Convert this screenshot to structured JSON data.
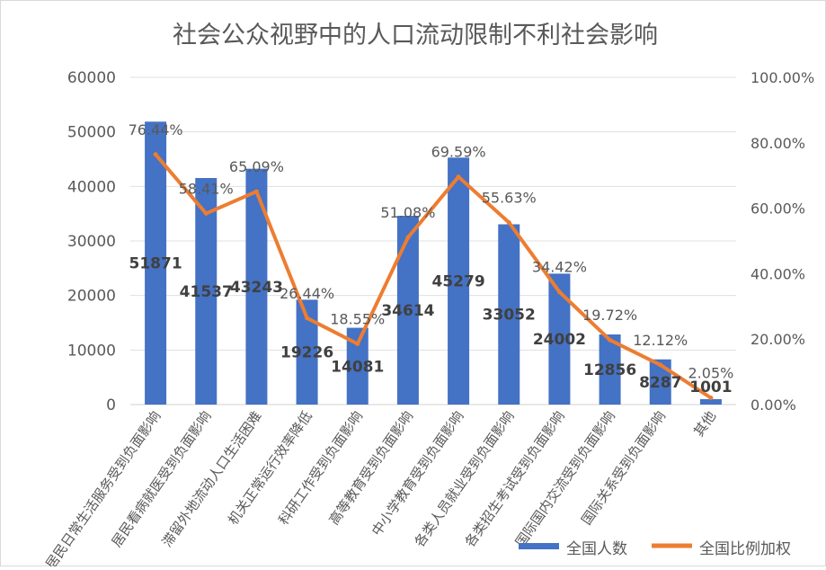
{
  "chart_data": {
    "type": "bar",
    "title": "社会公众视野中的人口流动限制不利社会影响",
    "categories": [
      "居民日常生活服务受到负面影响",
      "居民看病就医受到负面影响",
      "滞留外地流动人口生活困难",
      "机关正常运行效率降低",
      "科研工作受到负面影响",
      "高等教育受到负面影响",
      "中小学教育受到负面影响",
      "各类人员就业受到负面影响",
      "各类招生考试受到负面影响",
      "国际国内交流受到负面影响",
      "国际关系受到负面影响",
      "其他"
    ],
    "series": [
      {
        "name": "全国人数",
        "type": "bar",
        "axis": "left",
        "color": "#4472C4",
        "values": [
          51871,
          41537,
          43243,
          19226,
          14081,
          34614,
          45279,
          33052,
          24002,
          12856,
          8287,
          1001
        ],
        "labels": [
          "51871",
          "41537",
          "43243",
          "19226",
          "14081",
          "34614",
          "45279",
          "33052",
          "24002",
          "12856",
          "8287",
          "1001"
        ]
      },
      {
        "name": "全国比例加权",
        "type": "line",
        "axis": "right",
        "color": "#ED7D31",
        "values": [
          76.44,
          58.41,
          65.09,
          26.44,
          18.55,
          51.08,
          69.59,
          55.63,
          34.42,
          19.72,
          12.12,
          2.05
        ],
        "labels": [
          "76.44%",
          "58.41%",
          "65.09%",
          "26.44%",
          "18.55%",
          "51.08%",
          "69.59%",
          "55.63%",
          "34.42%",
          "19.72%",
          "12.12%",
          "2.05%"
        ]
      }
    ],
    "y_left": {
      "range": [
        0,
        60000
      ],
      "ticks": [
        "0",
        "10000",
        "20000",
        "30000",
        "40000",
        "50000",
        "60000"
      ]
    },
    "y_right": {
      "range": [
        0,
        100
      ],
      "ticks": [
        "0.00%",
        "20.00%",
        "40.00%",
        "60.00%",
        "80.00%",
        "100.00%"
      ]
    },
    "grid": true,
    "legend": "bottom-right"
  }
}
